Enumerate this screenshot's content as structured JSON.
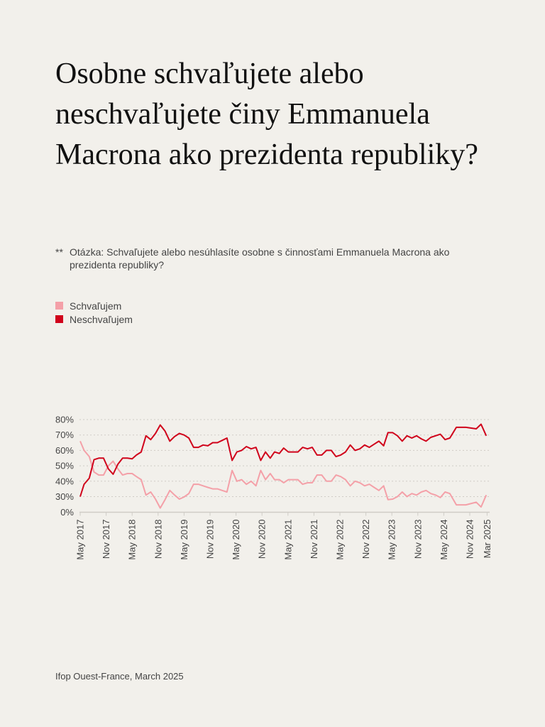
{
  "title": "Osobne schvaľujete alebo neschvaľujete činy Emmanuela Macrona ako prezidenta republiky?",
  "note": {
    "mark": "**",
    "text": "Otázka: Schvaľujete alebo nesúhlasíte osobne s činnosťami Emmanuela Macrona ako prezidenta republiky?"
  },
  "source": "Ifop Ouest-France, March 2025",
  "colors": {
    "background": "#f2f0eb",
    "approve": "#f4a0a8",
    "disapprove": "#d0021b"
  },
  "chart_data": {
    "type": "line",
    "title": "Osobne schvaľujete alebo neschvaľujete činy Emmanuela Macrona ako prezidenta republiky?",
    "xlabel": "",
    "ylabel": "",
    "x_unit": "months since May 2017",
    "xlim": [
      0,
      94
    ],
    "x_ticks": [
      {
        "m": 0,
        "label": "May 2017"
      },
      {
        "m": 6,
        "label": "Nov 2017"
      },
      {
        "m": 12,
        "label": "May 2018"
      },
      {
        "m": 18,
        "label": "Nov 2018"
      },
      {
        "m": 24,
        "label": "May 2019"
      },
      {
        "m": 30,
        "label": "Nov 2019"
      },
      {
        "m": 36,
        "label": "May 2020"
      },
      {
        "m": 42,
        "label": "Nov 2020"
      },
      {
        "m": 48,
        "label": "May 2021"
      },
      {
        "m": 54,
        "label": "Nov 2021"
      },
      {
        "m": 60,
        "label": "May 2022"
      },
      {
        "m": 66,
        "label": "Nov 2022"
      },
      {
        "m": 72,
        "label": "May 2023"
      },
      {
        "m": 78,
        "label": "Nov 2023"
      },
      {
        "m": 84,
        "label": "May 2024"
      },
      {
        "m": 90,
        "label": "Nov 2024"
      },
      {
        "m": 94,
        "label": "Mar 2025"
      }
    ],
    "y_ticks": [
      {
        "v": 80,
        "label": "80%"
      },
      {
        "v": 70,
        "label": "70%"
      },
      {
        "v": 60,
        "label": "60%"
      },
      {
        "v": 50,
        "label": "50%"
      },
      {
        "v": 40,
        "label": "40%"
      },
      {
        "v": 30,
        "label": "30%"
      },
      {
        "v": 0,
        "label": "0%"
      }
    ],
    "ylim": [
      0,
      80
    ],
    "grid": true,
    "legend_position": "top-left",
    "series": [
      {
        "name": "Schvaľujem",
        "color": "#f4a0a8",
        "x": [
          0,
          0.9,
          2.1,
          3.2,
          4.3,
          5.4,
          6.5,
          7.6,
          8.7,
          9.8,
          10.9,
          12,
          13,
          14.1,
          15.2,
          16.3,
          17.4,
          18.5,
          19.6,
          20.7,
          21.8,
          22.9,
          24,
          25.1,
          26.2,
          27.3,
          28.4,
          29.5,
          30.6,
          31.7,
          32.8,
          33.9,
          35.1,
          36.2,
          37.3,
          38.4,
          39.5,
          40.6,
          41.7,
          42.8,
          43.9,
          44.9,
          46,
          47,
          48.1,
          49.2,
          50.3,
          51.4,
          52.5,
          53.6,
          54.7,
          55.8,
          56.9,
          58,
          59.1,
          60.2,
          61.3,
          62.4,
          63.5,
          64.6,
          65.7,
          66.8,
          67.9,
          69,
          70.1,
          71.1,
          72.2,
          73.3,
          74.4,
          75.5,
          76.6,
          77.7,
          78.8,
          79.9,
          81,
          82.1,
          83.2,
          84.3,
          85.4,
          86.9,
          89.1,
          91.5,
          92.6,
          93.8
        ],
        "values": [
          66,
          60,
          56,
          46,
          44,
          44,
          50,
          53,
          48,
          44,
          45,
          45,
          43,
          41,
          31,
          33,
          25,
          8,
          24,
          34,
          31,
          25,
          29,
          32,
          38,
          38,
          37,
          36,
          35,
          35,
          34,
          33,
          47,
          40,
          41,
          38,
          40,
          37,
          47,
          41,
          45,
          41,
          41,
          39,
          41,
          41,
          41,
          38,
          39,
          39,
          44,
          44,
          40,
          40,
          44,
          43,
          41,
          37,
          40,
          39,
          37,
          38,
          36,
          34,
          37,
          24,
          25,
          30,
          33,
          30,
          32,
          31,
          33,
          34,
          32,
          31,
          28,
          33,
          32,
          14,
          14,
          19,
          10,
          31
        ]
      },
      {
        "name": "Neschvaľujem",
        "color": "#d0021b",
        "x": [
          0,
          0.9,
          2.1,
          3.2,
          4.3,
          5.4,
          6.5,
          7.6,
          8.7,
          9.8,
          10.9,
          12,
          13,
          14.1,
          15.2,
          16.3,
          17.4,
          18.5,
          19.6,
          20.7,
          21.8,
          22.9,
          24,
          25.1,
          26.2,
          27.3,
          28.4,
          29.5,
          30.6,
          31.7,
          32.8,
          33.9,
          35.1,
          36.2,
          37.3,
          38.4,
          39.5,
          40.6,
          41.7,
          42.8,
          43.9,
          44.9,
          46,
          47,
          48.1,
          49.2,
          50.3,
          51.4,
          52.5,
          53.6,
          54.7,
          55.8,
          56.9,
          58,
          59.1,
          60.2,
          61.3,
          62.4,
          63.5,
          64.6,
          65.7,
          66.8,
          67.9,
          69,
          70.1,
          71.1,
          72.2,
          73.3,
          74.4,
          75.5,
          76.6,
          77.7,
          78.8,
          79.9,
          81,
          82.1,
          83.2,
          84.3,
          85.4,
          86.9,
          89.1,
          91.5,
          92.6,
          93.8
        ],
        "values": [
          30,
          38,
          42,
          54,
          55,
          55,
          48,
          44.5,
          51,
          55,
          55,
          54.5,
          57,
          59,
          69.5,
          67,
          71,
          76.5,
          72.5,
          66,
          69,
          71,
          70,
          68,
          62,
          62,
          63.5,
          63,
          65,
          65,
          66.5,
          68,
          53.5,
          59,
          60,
          62.5,
          61,
          62,
          53.5,
          59,
          55,
          59,
          58,
          61.5,
          59,
          59,
          59,
          62,
          61,
          62,
          57,
          57,
          60,
          60,
          56,
          57,
          59,
          63.5,
          60,
          61,
          63.5,
          62,
          64,
          66,
          63,
          71.5,
          71.5,
          69.5,
          66,
          69.5,
          68,
          69.5,
          67.5,
          66,
          68.5,
          69.5,
          70.5,
          67,
          68,
          75,
          75,
          74,
          77,
          69.5
        ]
      }
    ]
  }
}
